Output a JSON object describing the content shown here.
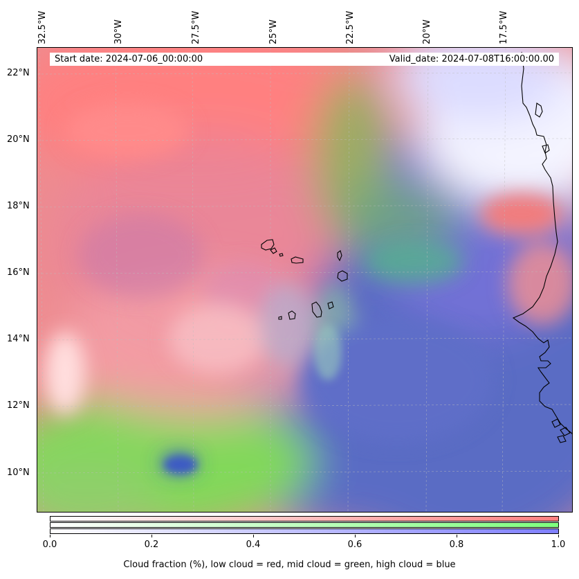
{
  "map": {
    "lon_labels": [
      "32.5°W",
      "30°W",
      "27.5°W",
      "25°W",
      "22.5°W",
      "20°W",
      "17.5°W"
    ],
    "lat_labels": [
      "22°N",
      "20°N",
      "18°N",
      "16°N",
      "14°N",
      "12°N",
      "10°N"
    ],
    "start_date": "Start date: 2024-07-06_00:00:00",
    "valid_date": "Valid_date: 2024-07-08T16:00:00.00",
    "extent": {
      "lon_min": -32.5,
      "lon_max": -15.2,
      "lat_min": 8.9,
      "lat_max": 22.8
    },
    "colors": {
      "low_cloud": "#ff7f7f",
      "mid_cloud": "#7fff7f",
      "high_cloud": "#7f7fff",
      "coastline": "#000000"
    }
  },
  "colorbar": {
    "tick_labels": [
      "0.0",
      "0.2",
      "0.4",
      "0.6",
      "0.8",
      "1.0"
    ],
    "title": "Cloud fraction (%), low cloud = red, mid cloud = green, high cloud = blue",
    "range": [
      0.0,
      1.0
    ]
  }
}
